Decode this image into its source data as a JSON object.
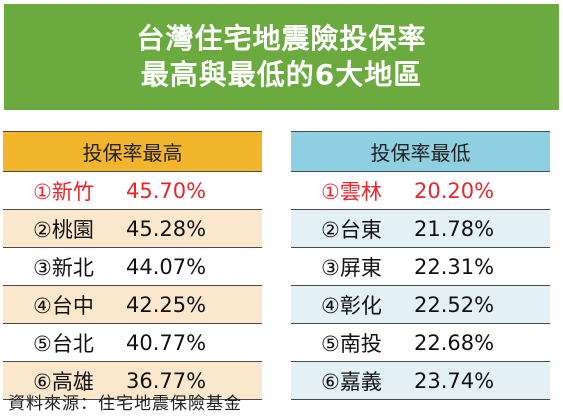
{
  "title": {
    "line1": "台灣住宅地震險投保率",
    "line2": "最高與最低的6大地區"
  },
  "highest": {
    "header": "投保率最高",
    "rows": [
      {
        "name": "①新竹",
        "value": "45.70%"
      },
      {
        "name": "②桃園",
        "value": "45.28%"
      },
      {
        "name": "③新北",
        "value": "44.07%"
      },
      {
        "name": "④台中",
        "value": "42.25%"
      },
      {
        "name": "⑤台北",
        "value": "40.77%"
      },
      {
        "name": "⑥高雄",
        "value": "36.77%"
      }
    ]
  },
  "lowest": {
    "header": "投保率最低",
    "rows": [
      {
        "name": "①雲林",
        "value": "20.20%"
      },
      {
        "name": "②台東",
        "value": "21.78%"
      },
      {
        "name": "③屏東",
        "value": "22.31%"
      },
      {
        "name": "④彰化",
        "value": "22.52%"
      },
      {
        "name": "⑤南投",
        "value": "22.68%"
      },
      {
        "name": "⑥嘉義",
        "value": "23.74%"
      }
    ]
  },
  "source": "資料來源：住宅地震保險基金",
  "colors": {
    "title_bg": "#6aaa3f",
    "highest_header": "#f2b52b",
    "lowest_header": "#8fcfe2",
    "highlight_text": "#e8262b"
  }
}
